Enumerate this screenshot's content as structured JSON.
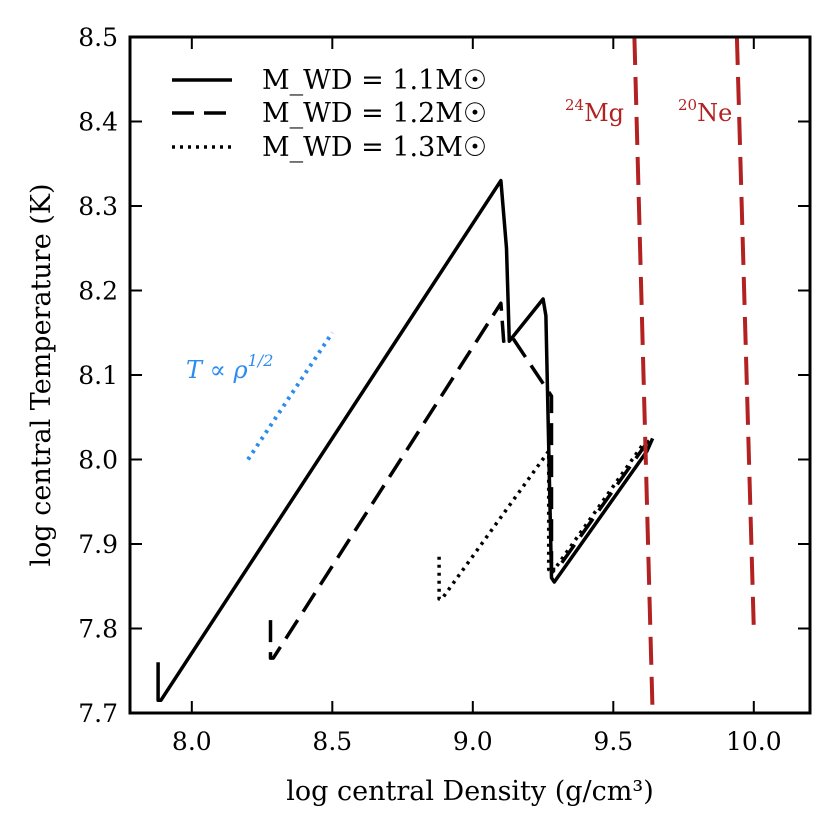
{
  "chart_data": {
    "type": "line",
    "xlabel": "log central Density (g/cm³)",
    "ylabel": "log central Temperature (K)",
    "xlim": [
      7.78,
      10.2
    ],
    "ylim": [
      7.7,
      8.5
    ],
    "xticks": [
      8.0,
      8.5,
      9.0,
      9.5,
      10.0
    ],
    "xtick_labels": [
      "8.0",
      "8.5",
      "9.0",
      "9.5",
      "10.0"
    ],
    "yticks": [
      7.7,
      7.8,
      7.9,
      8.0,
      8.1,
      8.2,
      8.3,
      8.4,
      8.5
    ],
    "ytick_labels": [
      "7.7",
      "7.8",
      "7.9",
      "8.0",
      "8.1",
      "8.2",
      "8.3",
      "8.4",
      "8.5"
    ],
    "grid": false,
    "legend_position": "top-left",
    "series": [
      {
        "name": "M_WD = 1.1 M☉",
        "legend_label": "M_WD = 1.1M☉",
        "color": "#000000",
        "style": "solid",
        "x": [
          7.88,
          7.88,
          7.89,
          9.1,
          9.12,
          9.13,
          9.25,
          9.26,
          9.28,
          9.29,
          9.62,
          9.64
        ],
        "y": [
          7.76,
          7.715,
          7.715,
          8.33,
          8.25,
          8.14,
          8.19,
          8.17,
          7.86,
          7.855,
          8.01,
          8.025
        ]
      },
      {
        "name": "M_WD = 1.2 M☉",
        "legend_label": "M_WD = 1.2M☉",
        "color": "#000000",
        "style": "dashed",
        "x": [
          8.28,
          8.28,
          8.29,
          9.1,
          9.11,
          9.14,
          9.28,
          9.28,
          9.3,
          9.62,
          9.64
        ],
        "y": [
          7.81,
          7.765,
          7.765,
          8.185,
          8.14,
          8.145,
          8.075,
          7.87,
          7.87,
          8.02,
          8.025
        ]
      },
      {
        "name": "M_WD = 1.3 M☉",
        "legend_label": "M_WD = 1.3M☉",
        "color": "#000000",
        "style": "dotted",
        "x": [
          8.88,
          8.88,
          8.89,
          9.27,
          9.27,
          9.28,
          9.61
        ],
        "y": [
          7.885,
          7.835,
          7.835,
          8.01,
          7.87,
          7.865,
          8.02
        ]
      },
      {
        "name": "24Mg",
        "color": "#b22222",
        "style": "dashed",
        "x": [
          9.575,
          9.64
        ],
        "y": [
          8.5,
          7.7
        ]
      },
      {
        "name": "20Ne",
        "color": "#b22222",
        "style": "dashed",
        "x": [
          9.94,
          10.0
        ],
        "y": [
          8.5,
          7.8
        ]
      },
      {
        "name": "T ∝ ρ^(1/2)",
        "color": "#2b8cf0",
        "style": "dotted",
        "x": [
          8.2,
          8.5
        ],
        "y": [
          8.0,
          8.15
        ]
      }
    ],
    "annotations": [
      {
        "id": "mg",
        "text_sup": "24",
        "text_base": "Mg",
        "color": "#b22222",
        "at": [
          9.47,
          8.405
        ]
      },
      {
        "id": "ne",
        "text_sup": "20",
        "text_base": "Ne",
        "color": "#b22222",
        "at": [
          9.87,
          8.405
        ]
      },
      {
        "id": "scaling",
        "text": "T ∝ ρ",
        "text_sup": "1/2",
        "color": "#2b8cf0",
        "at": [
          8.12,
          8.1
        ]
      }
    ]
  }
}
